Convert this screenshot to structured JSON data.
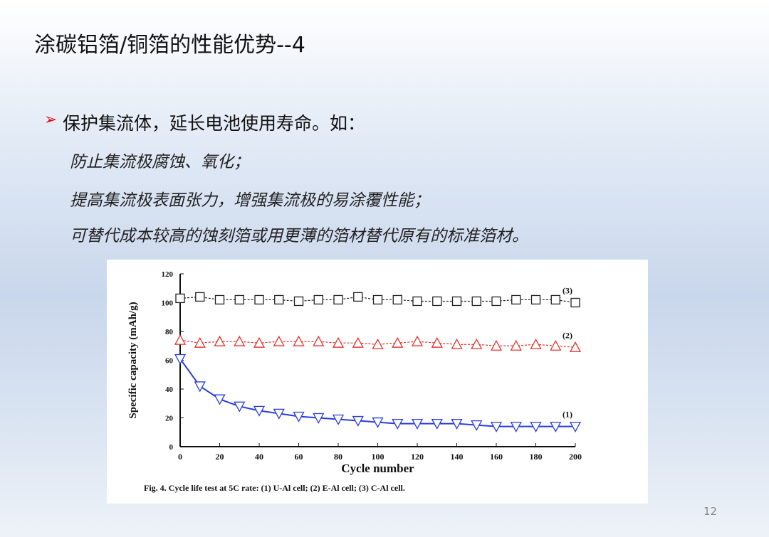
{
  "header": {
    "title": "涂碳铝箔/铜箔的性能优势--4"
  },
  "bullet": "保护集流体，延长电池使用寿命。如：",
  "items": [
    "防止集流极腐蚀、氧化；",
    "提高集流极表面张力，增强集流极的易涂覆性能；",
    "可替代成本较高的蚀刻箔或用更薄的箔材替代原有的标准箔材。"
  ],
  "page_number": "12",
  "chart_data": {
    "type": "line",
    "caption": "Fig. 4. Cycle life test at 5C rate: (1) U-Al cell; (2) E-Al cell; (3) C-Al cell.",
    "x_label": "Cycle number",
    "y_label": "Specific capacity (mAh/g)",
    "x": [
      0,
      10,
      20,
      30,
      40,
      50,
      60,
      70,
      80,
      90,
      100,
      110,
      120,
      130,
      140,
      150,
      160,
      170,
      180,
      190,
      200
    ],
    "xlim": [
      0,
      200
    ],
    "xticks": [
      0,
      20,
      40,
      60,
      80,
      100,
      120,
      140,
      160,
      180,
      200
    ],
    "ylim": [
      0,
      120
    ],
    "yticks": [
      0,
      20,
      40,
      60,
      80,
      100,
      120
    ],
    "series": [
      {
        "name": "(3)",
        "color": "#222222",
        "marker": "square",
        "values": [
          103,
          104,
          102,
          102,
          102,
          102,
          101,
          102,
          102,
          104,
          102,
          102,
          101,
          101,
          101,
          101,
          101,
          102,
          102,
          102,
          100
        ]
      },
      {
        "name": "(2)",
        "color": "#e8322c",
        "marker": "triangle-up",
        "values": [
          74,
          72,
          73,
          73,
          72,
          73,
          73,
          73,
          72,
          72,
          71,
          72,
          73,
          72,
          71,
          71,
          70,
          70,
          71,
          70,
          69
        ]
      },
      {
        "name": "(1)",
        "color": "#2a3be0",
        "marker": "triangle-down",
        "values": [
          61,
          42,
          33,
          28,
          25,
          23,
          21,
          20,
          19,
          18,
          17,
          16,
          16,
          16,
          16,
          15,
          14,
          14,
          14,
          14,
          14
        ]
      }
    ]
  }
}
